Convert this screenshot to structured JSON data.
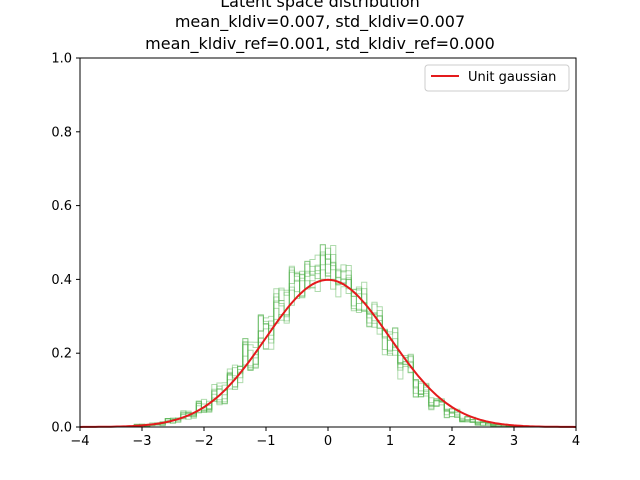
{
  "chart_data": {
    "type": "line",
    "title_lines": [
      "Latent space distribution",
      "mean_kldiv=0.007, std_kldiv=0.007",
      "mean_kldiv_ref=0.001, std_kldiv_ref=0.000"
    ],
    "xlabel": "",
    "ylabel": "",
    "xlim": [
      -4,
      4
    ],
    "ylim": [
      0,
      1.0
    ],
    "xticks": [
      -4,
      -3,
      -2,
      -1,
      0,
      1,
      2,
      3,
      4
    ],
    "yticks": [
      0.0,
      0.2,
      0.4,
      0.6,
      0.8,
      1.0
    ],
    "xtick_labels": [
      "−4",
      "−3",
      "−2",
      "−1",
      "0",
      "1",
      "2",
      "3",
      "4"
    ],
    "ytick_labels": [
      "0.0",
      "0.2",
      "0.4",
      "0.6",
      "0.8",
      "1.0"
    ],
    "grid": false,
    "legend_position": "top-right",
    "series": [
      {
        "name": "Unit gaussian",
        "kind": "line",
        "color": "#e41a1c",
        "x": [
          -4,
          -3.5,
          -3,
          -2.5,
          -2,
          -1.5,
          -1,
          -0.5,
          0,
          0.5,
          1,
          1.5,
          2,
          2.5,
          3,
          3.5,
          4
        ],
        "y": [
          0.0001,
          0.0009,
          0.0044,
          0.0175,
          0.054,
          0.1295,
          0.242,
          0.352,
          0.399,
          0.352,
          0.242,
          0.1295,
          0.054,
          0.0175,
          0.0044,
          0.0009,
          0.0001
        ]
      }
    ],
    "histograms": {
      "kind": "step-histogram",
      "color": "#4daf4a",
      "count": 8,
      "bin_centers": [
        -3.0,
        -2.75,
        -2.5,
        -2.25,
        -2.0,
        -1.75,
        -1.5,
        -1.25,
        -1.0,
        -0.75,
        -0.5,
        -0.25,
        0.0,
        0.25,
        0.5,
        0.75,
        1.0,
        1.25,
        1.5,
        1.75,
        2.0,
        2.25,
        2.5,
        2.75,
        3.0
      ],
      "envelope_low": [
        0.0,
        0.003,
        0.008,
        0.02,
        0.035,
        0.06,
        0.1,
        0.15,
        0.21,
        0.28,
        0.33,
        0.36,
        0.37,
        0.35,
        0.31,
        0.25,
        0.19,
        0.13,
        0.08,
        0.045,
        0.025,
        0.012,
        0.004,
        0.001,
        0.0
      ],
      "envelope_high": [
        0.008,
        0.015,
        0.025,
        0.045,
        0.075,
        0.12,
        0.17,
        0.24,
        0.31,
        0.38,
        0.44,
        0.47,
        0.5,
        0.45,
        0.4,
        0.34,
        0.27,
        0.2,
        0.13,
        0.08,
        0.05,
        0.03,
        0.015,
        0.008,
        0.003
      ]
    }
  }
}
